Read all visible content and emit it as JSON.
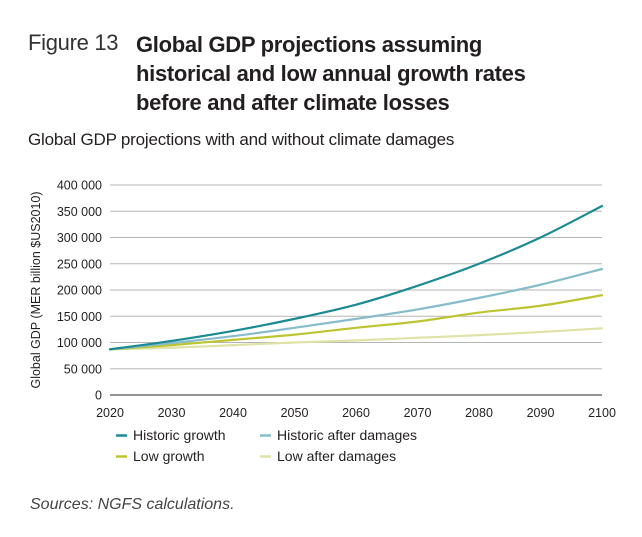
{
  "figure": {
    "number_label": "Figure 13",
    "title_lines": [
      "Global GDP projections assuming",
      "historical and low annual growth rates",
      "before and after climate losses"
    ],
    "subtitle": "Global GDP projections with and without climate damages",
    "source": "Sources: NGFS calculations."
  },
  "chart_data": {
    "type": "line",
    "title": "Global GDP projections with and without climate damages",
    "xlabel": "",
    "ylabel": "Global GDP (MER billion $US2010)",
    "x": [
      2020,
      2030,
      2040,
      2050,
      2060,
      2070,
      2080,
      2090,
      2100
    ],
    "xlim": [
      2020,
      2100
    ],
    "ylim": [
      0,
      400000
    ],
    "x_ticks": [
      2020,
      2030,
      2040,
      2050,
      2060,
      2070,
      2080,
      2090,
      2100
    ],
    "x_tick_labels": [
      "2020",
      "2030",
      "2040",
      "2050",
      "2060",
      "2070",
      "2080",
      "2090",
      "2100"
    ],
    "y_ticks": [
      0,
      50000,
      100000,
      150000,
      200000,
      250000,
      300000,
      350000,
      400000
    ],
    "y_tick_labels": [
      "0",
      "50 000",
      "100 000",
      "150 000",
      "200 000",
      "250 000",
      "300 000",
      "350 000",
      "400 000"
    ],
    "grid": "horizontal",
    "legend_position": "bottom-left",
    "series": [
      {
        "name": "Historic growth",
        "color": "#1b8a93",
        "values": [
          87000,
          103000,
          122000,
          145000,
          172000,
          208000,
          250000,
          300000,
          360000
        ]
      },
      {
        "name": "Historic after damages",
        "color": "#86bccb",
        "values": [
          87000,
          99000,
          112000,
          128000,
          145000,
          163000,
          185000,
          210000,
          240000
        ]
      },
      {
        "name": "Low growth",
        "color": "#bcc531",
        "values": [
          87000,
          95000,
          105000,
          115000,
          128000,
          140000,
          157000,
          170000,
          190000
        ]
      },
      {
        "name": "Low after damages",
        "color": "#dfe3a6",
        "values": [
          87000,
          90000,
          95000,
          100000,
          104000,
          109000,
          114000,
          120000,
          127000
        ]
      }
    ]
  }
}
